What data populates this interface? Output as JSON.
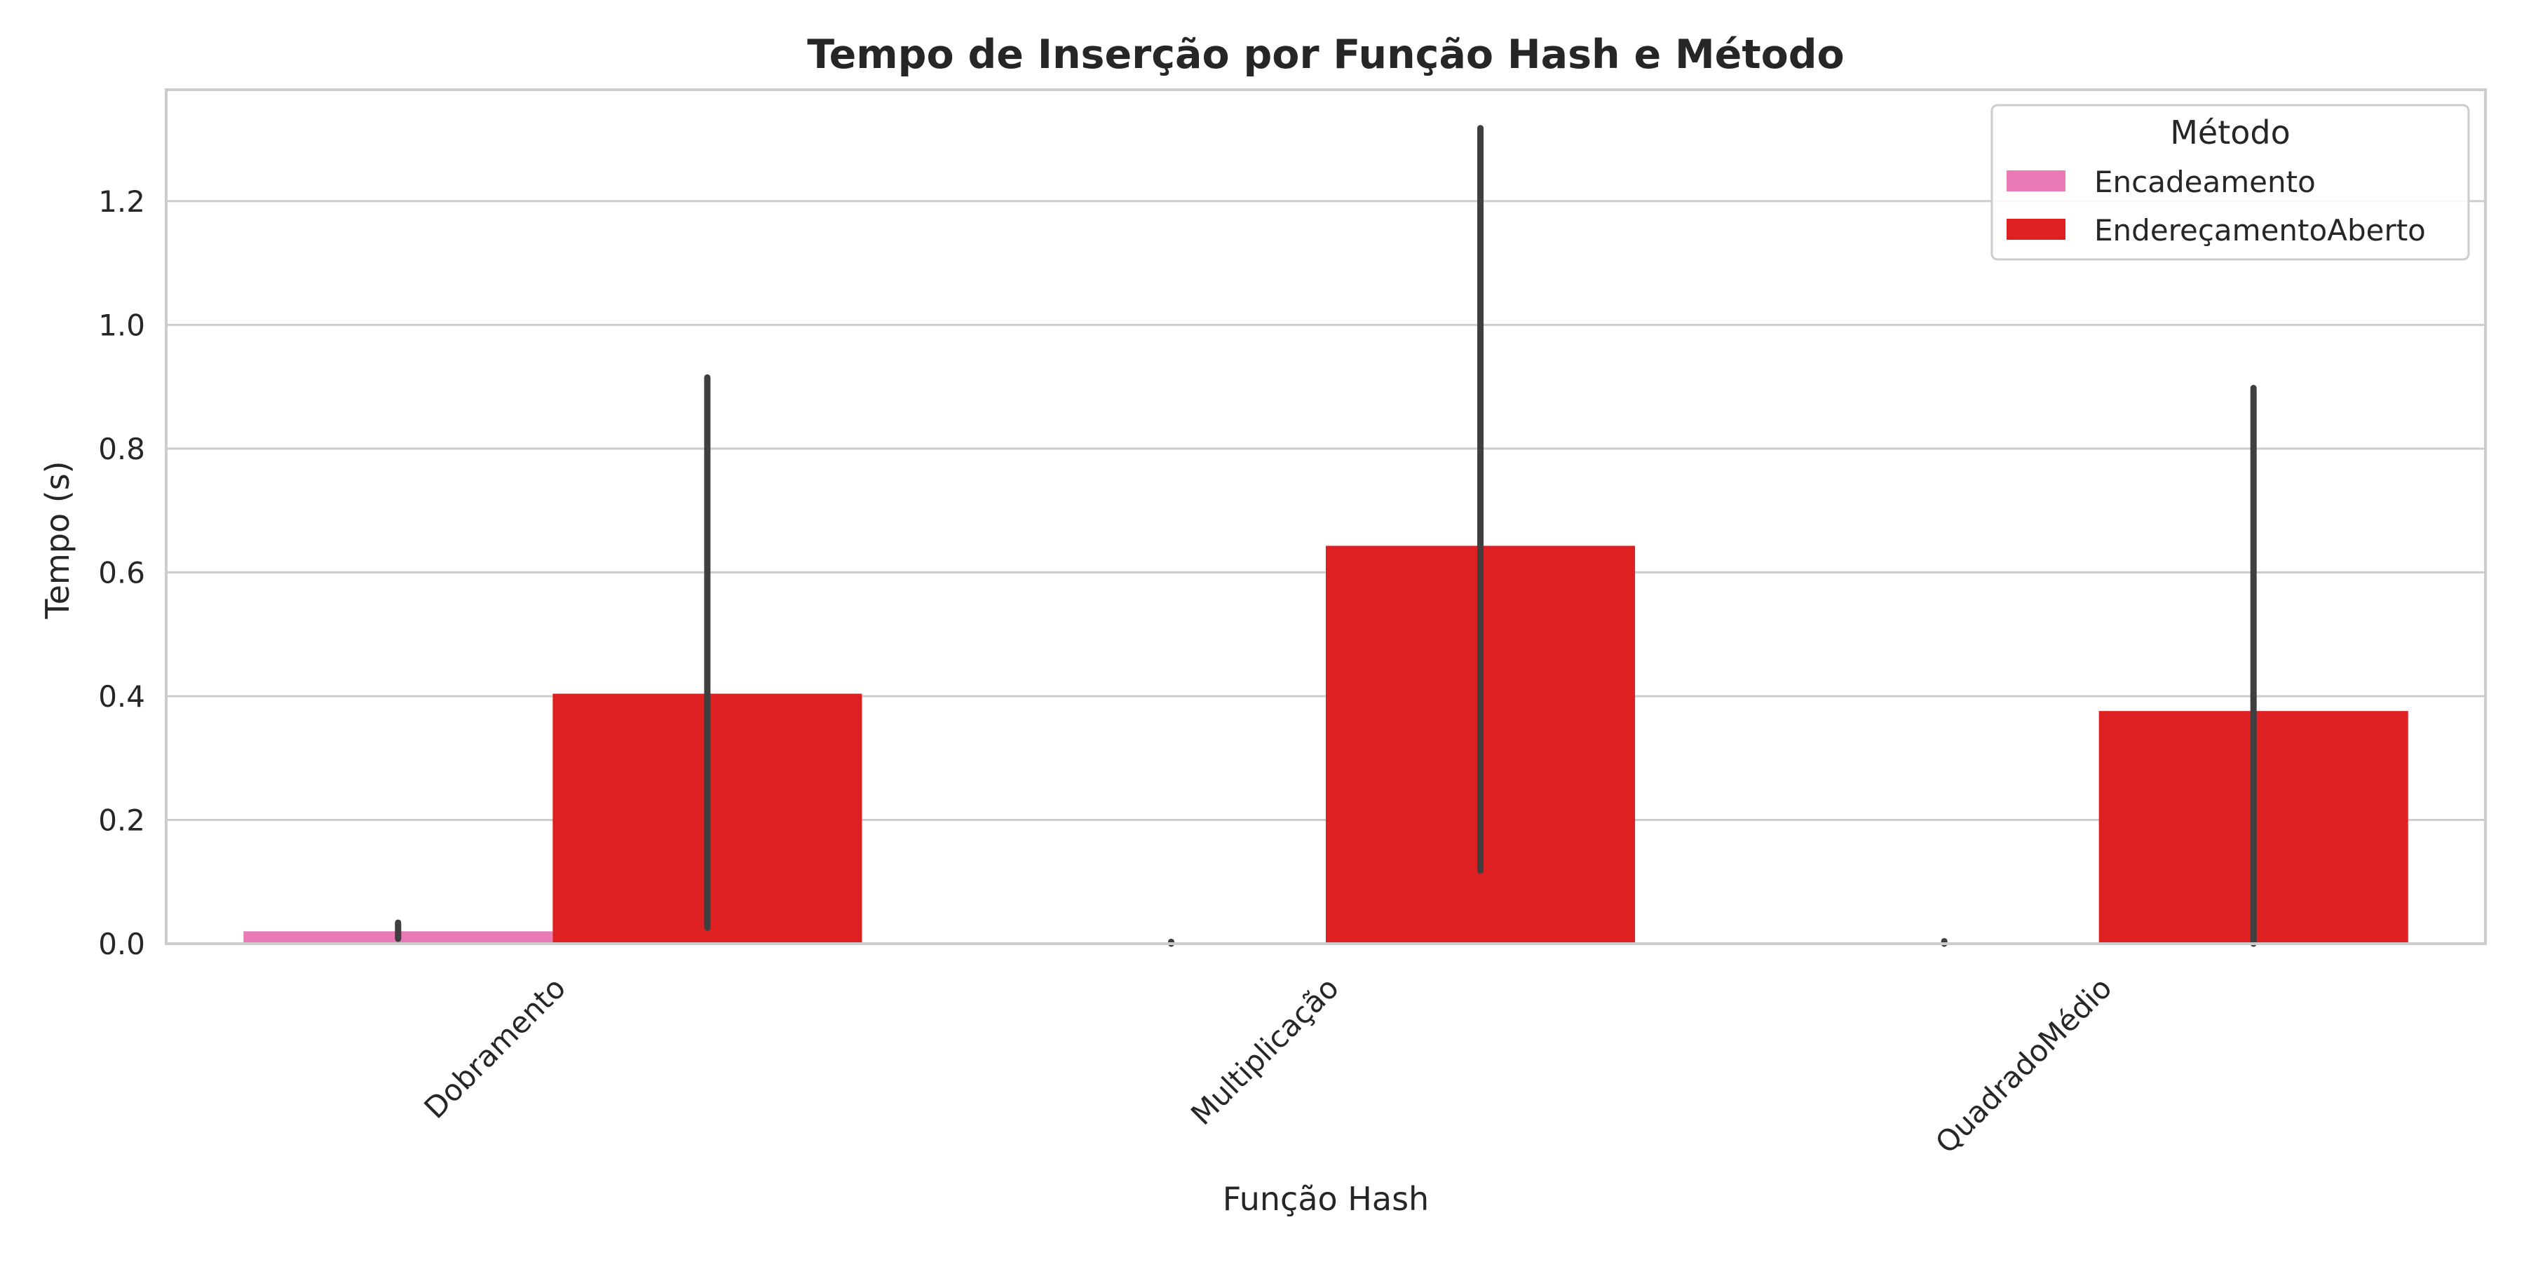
{
  "chart_data": {
    "type": "bar",
    "title": "Tempo de Inserção por Função Hash e Método",
    "xlabel": "Função Hash",
    "ylabel": "Tempo (s)",
    "categories": [
      "Dobramento",
      "Multiplicação",
      "QuadradoMédio"
    ],
    "ylim": [
      0,
      1.38
    ],
    "yticks": [
      0.0,
      0.2,
      0.4,
      0.6,
      0.8,
      1.0,
      1.2
    ],
    "ytick_labels": [
      "0.0",
      "0.2",
      "0.4",
      "0.6",
      "0.8",
      "1.0",
      "1.2"
    ],
    "grid": "horizontal",
    "legend": {
      "title": "Método",
      "placement": "top-right"
    },
    "series": [
      {
        "name": "Encadeamento",
        "color": "#e97ab6",
        "values": [
          0.02,
          0.0005,
          0.0005
        ],
        "error_low": [
          0.008,
          0.0,
          0.0
        ],
        "error_high": [
          0.034,
          0.003,
          0.004
        ]
      },
      {
        "name": "EndereçamentoAberto",
        "color": "#df2022",
        "values": [
          0.404,
          0.643,
          0.376
        ],
        "error_low": [
          0.026,
          0.118,
          0.0
        ],
        "error_high": [
          0.915,
          1.318,
          0.898
        ]
      }
    ],
    "error_bar_color": "#3f3f3f",
    "grid_color": "#cccccc",
    "frame_color": "#cccccc"
  }
}
